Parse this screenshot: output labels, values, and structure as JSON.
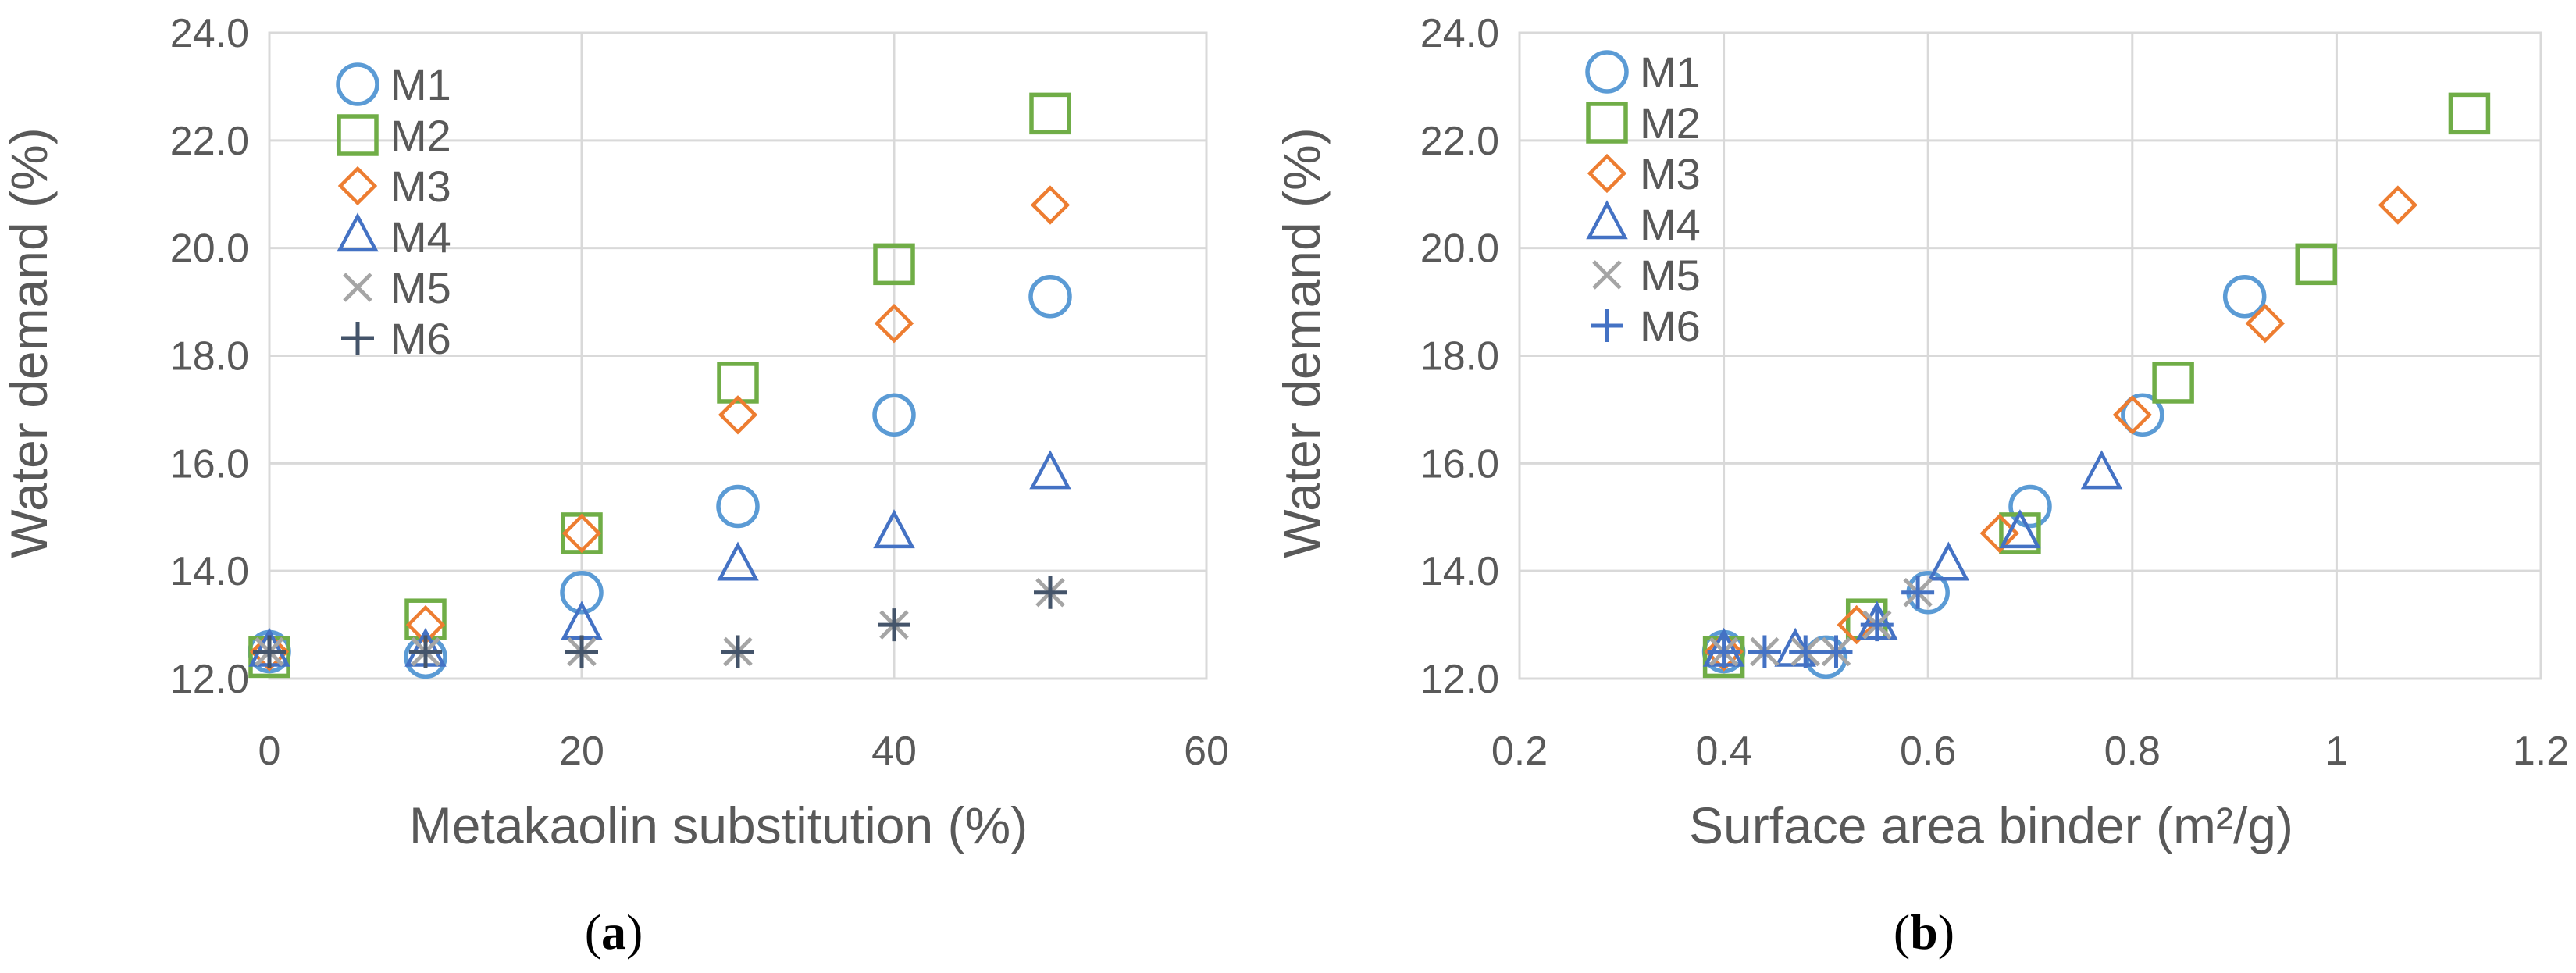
{
  "chart_data": [
    {
      "type": "scatter",
      "panel": "a",
      "xlabel": "Metakaolin substitution (%)",
      "ylabel": "Water demand (%)",
      "xlim": [
        0,
        60
      ],
      "ylim": [
        12.0,
        24.0
      ],
      "xticks": [
        "0",
        "20",
        "40",
        "60"
      ],
      "yticks": [
        "12.0",
        "14.0",
        "16.0",
        "18.0",
        "20.0",
        "22.0",
        "24.0"
      ],
      "legend": [
        "M1",
        "M2",
        "M3",
        "M4",
        "M5",
        "M6"
      ],
      "legend_position": "top-left",
      "grid": true,
      "series": [
        {
          "name": "M1",
          "x": [
            0,
            10,
            20,
            30,
            40,
            50
          ],
          "y": [
            12.5,
            12.4,
            13.6,
            15.2,
            16.9,
            19.1
          ]
        },
        {
          "name": "M2",
          "x": [
            0,
            10,
            20,
            30,
            40,
            50
          ],
          "y": [
            12.4,
            13.1,
            14.7,
            17.5,
            19.7,
            22.5
          ]
        },
        {
          "name": "M3",
          "x": [
            0,
            10,
            20,
            30,
            40,
            50
          ],
          "y": [
            12.5,
            13.0,
            14.7,
            16.9,
            18.6,
            20.8
          ]
        },
        {
          "name": "M4",
          "x": [
            0,
            10,
            20,
            30,
            40,
            50
          ],
          "y": [
            12.5,
            12.5,
            13.0,
            14.1,
            14.7,
            15.8
          ]
        },
        {
          "name": "M5",
          "x": [
            0,
            10,
            20,
            30,
            40,
            50
          ],
          "y": [
            12.5,
            12.5,
            12.5,
            12.5,
            13.0,
            13.6
          ]
        },
        {
          "name": "M6",
          "x": [
            0,
            10,
            20,
            30,
            40,
            50
          ],
          "y": [
            12.5,
            12.5,
            12.5,
            12.5,
            13.0,
            13.6
          ]
        }
      ]
    },
    {
      "type": "scatter",
      "panel": "b",
      "xlabel": "Surface area binder (m²/g)",
      "ylabel": "Water demand (%)",
      "xlim": [
        0.2,
        1.2
      ],
      "ylim": [
        12.0,
        24.0
      ],
      "xticks": [
        "0.2",
        "0.4",
        "0.6",
        "0.8",
        "1",
        "1.2"
      ],
      "yticks": [
        "12.0",
        "14.0",
        "16.0",
        "18.0",
        "20.0",
        "22.0",
        "24.0"
      ],
      "legend": [
        "M1",
        "M2",
        "M3",
        "M4",
        "M5",
        "M6"
      ],
      "legend_position": "top-left",
      "grid": true,
      "series": [
        {
          "name": "M1",
          "x": [
            0.4,
            0.5,
            0.6,
            0.7,
            0.81,
            0.91
          ],
          "y": [
            12.5,
            12.4,
            13.6,
            15.2,
            16.9,
            19.1
          ]
        },
        {
          "name": "M2",
          "x": [
            0.4,
            0.54,
            0.69,
            0.84,
            0.98,
            1.13
          ],
          "y": [
            12.4,
            13.1,
            14.7,
            17.5,
            19.7,
            22.5
          ]
        },
        {
          "name": "M3",
          "x": [
            0.4,
            0.53,
            0.67,
            0.8,
            0.93,
            1.06
          ],
          "y": [
            12.5,
            13.0,
            14.7,
            16.9,
            18.6,
            20.8
          ]
        },
        {
          "name": "M4",
          "x": [
            0.4,
            0.47,
            0.55,
            0.62,
            0.69,
            0.77
          ],
          "y": [
            12.5,
            12.5,
            13.0,
            14.1,
            14.7,
            15.8
          ]
        },
        {
          "name": "M5",
          "x": [
            0.4,
            0.44,
            0.48,
            0.51,
            0.55,
            0.59
          ],
          "y": [
            12.5,
            12.5,
            12.5,
            12.5,
            13.0,
            13.6
          ]
        },
        {
          "name": "M6",
          "x": [
            0.4,
            0.44,
            0.48,
            0.51,
            0.55,
            0.59
          ],
          "y": [
            12.5,
            12.5,
            12.5,
            12.5,
            13.0,
            13.6
          ]
        }
      ]
    }
  ],
  "styles": {
    "M1": {
      "marker": "circle",
      "color": "#5b9bd5"
    },
    "M2": {
      "marker": "square",
      "color": "#70ad47"
    },
    "M3": {
      "marker": "diamond",
      "color": "#ed7d31"
    },
    "M4": {
      "marker": "triangle",
      "color": "#4472c4"
    },
    "M5": {
      "marker": "x",
      "color": "#a5a5a5"
    },
    "M6": {
      "marker": "plus",
      "color": "#44546a"
    },
    "M6_b": {
      "marker": "plus",
      "color": "#4472c4"
    }
  },
  "panel_labels": [
    {
      "open": "(",
      "letter": "a",
      "close": ")"
    },
    {
      "open": "(",
      "letter": "b",
      "close": ")"
    }
  ]
}
